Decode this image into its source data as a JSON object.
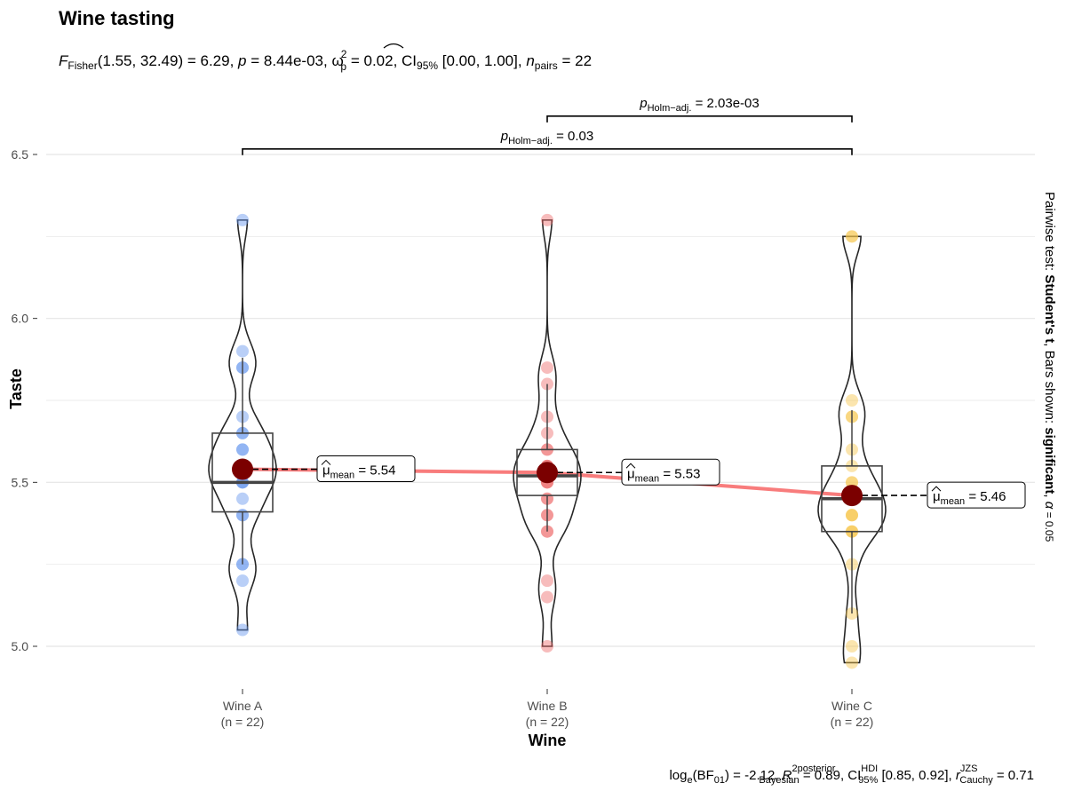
{
  "title": "Wine tasting",
  "subtitle": {
    "F": "F",
    "F_sub": "Fisher",
    "df": "(1.55, 32.49) = 6.29, ",
    "p": "p",
    "p_val": " = 8.44e-03, ",
    "omega": "ω",
    "omega_sup": "2",
    "omega_sub": "p",
    "omega_val": " = 0.02, CI",
    "ci_sub": "95%",
    "ci_val": " [0.00, 1.00], ",
    "n": "n",
    "n_sub": "pairs",
    "n_val": " = 22"
  },
  "caption": {
    "log": "log",
    "log_sub": "e",
    "bf": "(BF",
    "bf_sub": "01",
    "bf_val": ") = -2.12, ",
    "r": "R",
    "r_sup": "2",
    "r_sup2": "posterior",
    "r_sub": "Bayesian",
    "r_val": " = 0.89, CI",
    "ci_sup": "HDI",
    "ci_sub": "95%",
    "ci_val": " [0.85, 0.92], ",
    "rc": "r",
    "rc_sup": "JZS",
    "rc_sub": "Cauchy",
    "rc_val": " = 0.71"
  },
  "side_note": {
    "part1": "Pairwise test: ",
    "part2": "Student's t",
    "part3": ", Bars shown: ",
    "part4": "significant",
    "part5": ", ",
    "part6": "α",
    "part7": " = 0.05"
  },
  "chart_data": {
    "type": "violin-box-scatter",
    "xlabel": "Wine",
    "ylabel": "Taste",
    "ylim": [
      4.92,
      6.62
    ],
    "yticks": [
      5.0,
      5.5,
      6.0,
      6.5
    ],
    "ytick_labels": [
      "5.0",
      "5.5",
      "6.0",
      "6.5"
    ],
    "grid": true,
    "categories": [
      {
        "name": "Wine A",
        "n_label": "(n = 22)",
        "color": "#6495ED",
        "points": [
          6.3,
          5.9,
          5.85,
          5.85,
          5.7,
          5.65,
          5.65,
          5.6,
          5.55,
          5.55,
          5.5,
          5.5,
          5.5,
          5.45,
          5.4,
          5.4,
          5.25,
          5.25,
          5.2,
          5.05,
          5.6,
          5.55
        ],
        "box": {
          "q1": 5.41,
          "median": 5.5,
          "q3": 5.65,
          "whisker_low": 5.25,
          "whisker_high": 5.88
        },
        "mean": 5.54,
        "mean_label_mu": "μ",
        "mean_label_sub": "mean",
        "mean_label_val": " = 5.54"
      },
      {
        "name": "Wine B",
        "n_label": "(n = 22)",
        "color": "#EE6A6A",
        "points": [
          6.3,
          5.85,
          5.8,
          5.7,
          5.65,
          5.6,
          5.55,
          5.55,
          5.5,
          5.5,
          5.45,
          5.4,
          5.4,
          5.35,
          5.35,
          5.2,
          5.15,
          5.0,
          5.55,
          5.6,
          5.5,
          5.45
        ],
        "box": {
          "q1": 5.46,
          "median": 5.52,
          "q3": 5.6,
          "whisker_low": 5.35,
          "whisker_high": 5.8
        },
        "mean": 5.53,
        "mean_label_mu": "μ",
        "mean_label_sub": "mean",
        "mean_label_val": " = 5.53"
      },
      {
        "name": "Wine C",
        "n_label": "(n = 22)",
        "color": "#F6C54C",
        "points": [
          6.25,
          6.25,
          5.75,
          5.7,
          5.7,
          5.6,
          5.55,
          5.5,
          5.45,
          5.45,
          5.4,
          5.4,
          5.35,
          5.35,
          5.25,
          5.1,
          5.0,
          4.95,
          5.5,
          5.45,
          5.4,
          5.35
        ],
        "box": {
          "q1": 5.35,
          "median": 5.45,
          "q3": 5.55,
          "whisker_low": 5.1,
          "whisker_high": 5.72
        },
        "mean": 5.46,
        "mean_label_mu": "μ",
        "mean_label_sub": "mean",
        "mean_label_val": " = 5.46"
      }
    ],
    "comparisons": [
      {
        "from": 0,
        "to": 2,
        "label_p": "p",
        "label_sub": "Holm−adj.",
        "label_val": " = 0.03",
        "level": 6.525
      },
      {
        "from": 1,
        "to": 2,
        "label_p": "p",
        "label_sub": "Holm−adj.",
        "label_val": " = 2.03e-03",
        "level": 6.625
      }
    ],
    "colors": {
      "mean_point": "#7B0000",
      "mean_line": "#F87C7C",
      "grid": "#E5E5E5",
      "violin": "#262626"
    }
  }
}
